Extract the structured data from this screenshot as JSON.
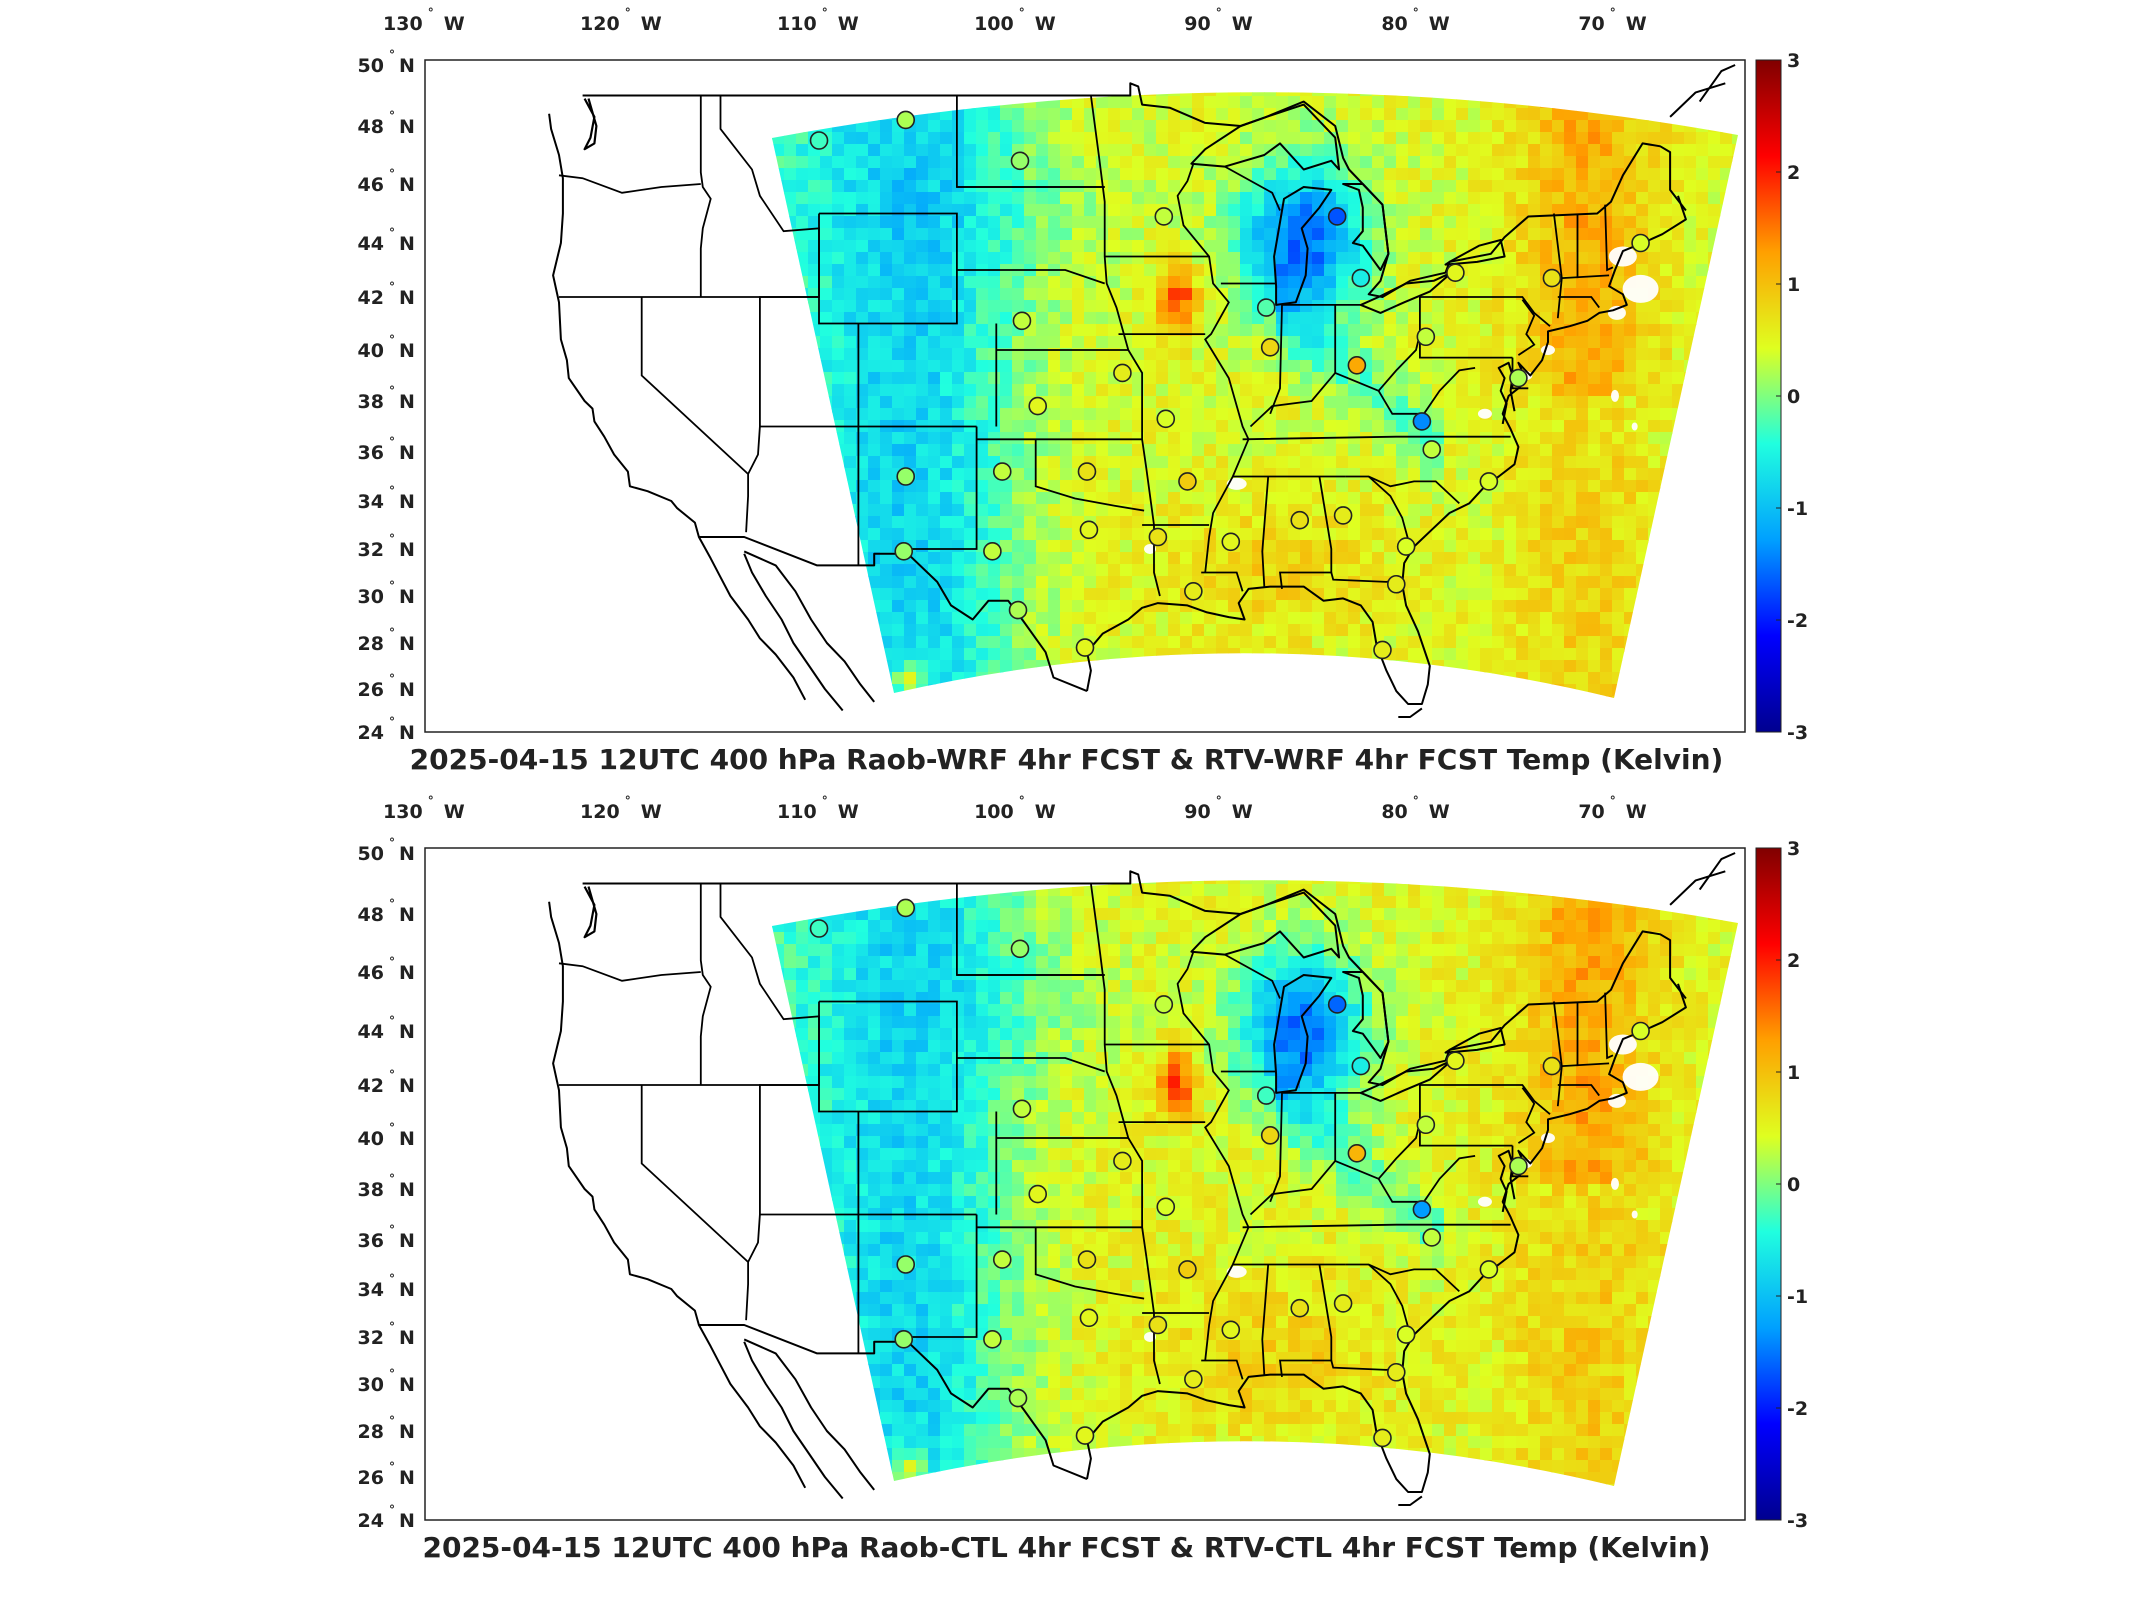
{
  "panels": [
    {
      "title": "2025-04-15 12UTC 400 hPa Raob-WRF 4hr FCST & RTV-WRF 4hr FCST Temp (Kelvin)",
      "variant": "wrf"
    },
    {
      "title": "2025-04-15 12UTC 400 hPa Raob-CTL 4hr FCST & RTV-CTL 4hr FCST Temp (Kelvin)",
      "variant": "ctl"
    }
  ],
  "axes": {
    "lon_ticks": [
      {
        "value": -130,
        "label": "130",
        "hemi": "W"
      },
      {
        "value": -120,
        "label": "120",
        "hemi": "W"
      },
      {
        "value": -110,
        "label": "110",
        "hemi": "W"
      },
      {
        "value": -100,
        "label": "100",
        "hemi": "W"
      },
      {
        "value": -90,
        "label": "90",
        "hemi": "W"
      },
      {
        "value": -80,
        "label": "80",
        "hemi": "W"
      },
      {
        "value": -70,
        "label": "70",
        "hemi": "W"
      }
    ],
    "lat_ticks": [
      {
        "value": 50,
        "label": "50",
        "hemi": "N"
      },
      {
        "value": 48,
        "label": "48",
        "hemi": "N"
      },
      {
        "value": 46,
        "label": "46",
        "hemi": "N"
      },
      {
        "value": 44,
        "label": "44",
        "hemi": "N"
      },
      {
        "value": 42,
        "label": "42",
        "hemi": "N"
      },
      {
        "value": 40,
        "label": "40",
        "hemi": "N"
      },
      {
        "value": 38,
        "label": "38",
        "hemi": "N"
      },
      {
        "value": 36,
        "label": "36",
        "hemi": "N"
      },
      {
        "value": 34,
        "label": "34",
        "hemi": "N"
      },
      {
        "value": 32,
        "label": "32",
        "hemi": "N"
      },
      {
        "value": 30,
        "label": "30",
        "hemi": "N"
      },
      {
        "value": 28,
        "label": "28",
        "hemi": "N"
      },
      {
        "value": 26,
        "label": "26",
        "hemi": "N"
      },
      {
        "value": 24,
        "label": "24",
        "hemi": "N"
      }
    ],
    "lon_range": [
      -131,
      -64
    ],
    "lat_range": [
      24,
      50
    ]
  },
  "colorbar": {
    "range": [
      -3,
      3
    ],
    "ticks": [
      "3",
      "2",
      "1",
      "0",
      "-1",
      "-2",
      "-3"
    ],
    "colormap": "jet",
    "colors": [
      "#00008f",
      "#0000ff",
      "#00a0ff",
      "#20ffdf",
      "#dfff20",
      "#ffa000",
      "#ff0000",
      "#800000"
    ]
  },
  "raob_stations": [
    {
      "lon": -111.0,
      "lat": 47.5,
      "wrf": -0.3,
      "ctl": -0.3
    },
    {
      "lon": -106.6,
      "lat": 48.2,
      "wrf": 0.2,
      "ctl": 0.2
    },
    {
      "lon": -100.8,
      "lat": 46.8,
      "wrf": 0.1,
      "ctl": 0.1
    },
    {
      "lon": -93.5,
      "lat": 44.9,
      "wrf": 0.3,
      "ctl": 0.3
    },
    {
      "lon": -84.7,
      "lat": 44.9,
      "wrf": -1.7,
      "ctl": -1.6
    },
    {
      "lon": -69.3,
      "lat": 44.0,
      "wrf": 0.4,
      "ctl": 0.4
    },
    {
      "lon": -73.8,
      "lat": 42.7,
      "wrf": 0.7,
      "ctl": 0.7
    },
    {
      "lon": -78.7,
      "lat": 42.9,
      "wrf": 0.5,
      "ctl": 0.5
    },
    {
      "lon": -83.5,
      "lat": 42.7,
      "wrf": -0.6,
      "ctl": -0.6
    },
    {
      "lon": -88.3,
      "lat": 41.6,
      "wrf": -0.2,
      "ctl": -0.3
    },
    {
      "lon": -100.7,
      "lat": 41.1,
      "wrf": 0.3,
      "ctl": 0.3
    },
    {
      "lon": -80.2,
      "lat": 40.5,
      "wrf": 0.3,
      "ctl": 0.3
    },
    {
      "lon": -88.1,
      "lat": 40.1,
      "wrf": 0.8,
      "ctl": 0.8
    },
    {
      "lon": -83.7,
      "lat": 39.4,
      "wrf": 1.2,
      "ctl": 1.1
    },
    {
      "lon": -95.6,
      "lat": 39.1,
      "wrf": 0.6,
      "ctl": 0.6
    },
    {
      "lon": -75.5,
      "lat": 38.9,
      "wrf": 0.2,
      "ctl": 0.2
    },
    {
      "lon": -99.9,
      "lat": 37.8,
      "wrf": 0.5,
      "ctl": 0.5
    },
    {
      "lon": -93.4,
      "lat": 37.3,
      "wrf": 0.4,
      "ctl": 0.4
    },
    {
      "lon": -80.4,
      "lat": 37.2,
      "wrf": -1.4,
      "ctl": -1.3
    },
    {
      "lon": -79.9,
      "lat": 36.1,
      "wrf": 0.3,
      "ctl": 0.3
    },
    {
      "lon": -106.6,
      "lat": 35.0,
      "wrf": 0.1,
      "ctl": 0.1
    },
    {
      "lon": -101.7,
      "lat": 35.2,
      "wrf": 0.3,
      "ctl": 0.3
    },
    {
      "lon": -97.4,
      "lat": 35.2,
      "wrf": 0.7,
      "ctl": 0.7
    },
    {
      "lon": -92.3,
      "lat": 34.8,
      "wrf": 0.9,
      "ctl": 0.9
    },
    {
      "lon": -77.0,
      "lat": 34.8,
      "wrf": 0.4,
      "ctl": 0.4
    },
    {
      "lon": -86.6,
      "lat": 33.2,
      "wrf": 0.7,
      "ctl": 0.7
    },
    {
      "lon": -84.4,
      "lat": 33.4,
      "wrf": 0.6,
      "ctl": 0.6
    },
    {
      "lon": -97.3,
      "lat": 32.8,
      "wrf": 0.5,
      "ctl": 0.5
    },
    {
      "lon": -93.8,
      "lat": 32.5,
      "wrf": 0.7,
      "ctl": 0.7
    },
    {
      "lon": -90.1,
      "lat": 32.3,
      "wrf": 0.5,
      "ctl": 0.5
    },
    {
      "lon": -81.2,
      "lat": 32.1,
      "wrf": 0.4,
      "ctl": 0.4
    },
    {
      "lon": -106.7,
      "lat": 31.9,
      "wrf": 0.1,
      "ctl": 0.1
    },
    {
      "lon": -102.2,
      "lat": 31.9,
      "wrf": 0.3,
      "ctl": 0.3
    },
    {
      "lon": -92.0,
      "lat": 30.2,
      "wrf": 0.6,
      "ctl": 0.6
    },
    {
      "lon": -81.7,
      "lat": 30.5,
      "wrf": 0.6,
      "ctl": 0.6
    },
    {
      "lon": -100.9,
      "lat": 29.4,
      "wrf": 0.2,
      "ctl": 0.2
    },
    {
      "lon": -97.5,
      "lat": 27.8,
      "wrf": 0.5,
      "ctl": 0.5
    },
    {
      "lon": -82.4,
      "lat": 27.7,
      "wrf": 0.6,
      "ctl": 0.6
    }
  ]
}
